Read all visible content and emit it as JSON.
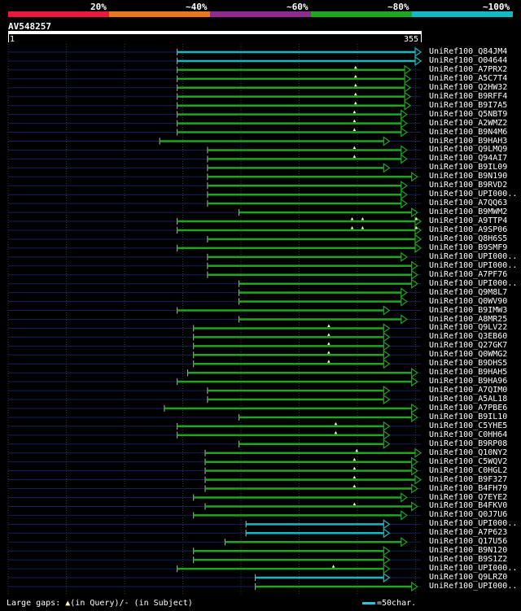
{
  "legend": {
    "labels": [
      "20%",
      "~40%",
      "~60%",
      "~80%",
      "~100%"
    ],
    "colors": [
      "#e8193a",
      "#e87820",
      "#8e2b8e",
      "#1fa51f",
      "#15b9c4"
    ]
  },
  "query": {
    "name": "AV548257",
    "start": "1",
    "end": "355",
    "length": 355
  },
  "footer": {
    "large_gaps": "Large gaps: ",
    "gap_query": "(in Query)/",
    "gap_subject": "- (in Subject)",
    "scale": "=50char."
  },
  "chart_data": {
    "type": "alignment",
    "x_range": [
      1,
      355
    ],
    "hits": [
      {
        "name": "UniRef100_Q84JM4",
        "start": 146,
        "end": 355,
        "identity": "~100%",
        "color": "#15b9c4",
        "gaps": []
      },
      {
        "name": "UniRef100_O04644",
        "start": 146,
        "end": 355,
        "identity": "~100%",
        "color": "#15b9c4",
        "gaps": []
      },
      {
        "name": "UniRef100_A7PRX2",
        "start": 146,
        "end": 346,
        "identity": "~80%",
        "color": "#1fa51f",
        "gaps": [
          299
        ]
      },
      {
        "name": "UniRef100_A5C7T4",
        "start": 146,
        "end": 346,
        "identity": "~80%",
        "color": "#1fa51f",
        "gaps": [
          299
        ]
      },
      {
        "name": "UniRef100_Q2HW32",
        "start": 146,
        "end": 346,
        "identity": "~80%",
        "color": "#1fa51f",
        "gaps": [
          299
        ]
      },
      {
        "name": "UniRef100_B9RFF4",
        "start": 146,
        "end": 346,
        "identity": "~80%",
        "color": "#1fa51f",
        "gaps": [
          299
        ]
      },
      {
        "name": "UniRef100_B9I7A5",
        "start": 146,
        "end": 346,
        "identity": "~80%",
        "color": "#1fa51f",
        "gaps": [
          299
        ]
      },
      {
        "name": "UniRef100_Q5NBT9",
        "start": 146,
        "end": 343,
        "identity": "~80%",
        "color": "#1fa51f",
        "gaps": [
          298
        ]
      },
      {
        "name": "UniRef100_A2WMZ2",
        "start": 146,
        "end": 343,
        "identity": "~80%",
        "color": "#1fa51f",
        "gaps": [
          298
        ]
      },
      {
        "name": "UniRef100_B9N4M6",
        "start": 146,
        "end": 343,
        "identity": "~80%",
        "color": "#1fa51f",
        "gaps": [
          298
        ]
      },
      {
        "name": "UniRef100_B9HAH3",
        "start": 131,
        "end": 328,
        "identity": "~80%",
        "color": "#1fa51f",
        "gaps": []
      },
      {
        "name": "UniRef100_Q9LMQ9",
        "start": 172,
        "end": 343,
        "identity": "~80%",
        "color": "#1fa51f",
        "gaps": [
          298
        ]
      },
      {
        "name": "UniRef100_Q94AI7",
        "start": 172,
        "end": 343,
        "identity": "~80%",
        "color": "#1fa51f",
        "gaps": [
          298
        ]
      },
      {
        "name": "UniRef100_B9IL09",
        "start": 172,
        "end": 328,
        "identity": "~80%",
        "color": "#1fa51f",
        "gaps": []
      },
      {
        "name": "UniRef100_B9N190",
        "start": 172,
        "end": 352,
        "identity": "~80%",
        "color": "#1fa51f",
        "gaps": []
      },
      {
        "name": "UniRef100_B9RVD2",
        "start": 172,
        "end": 343,
        "identity": "~80%",
        "color": "#1fa51f",
        "gaps": []
      },
      {
        "name": "UniRef100_UPI000..",
        "start": 172,
        "end": 343,
        "identity": "~80%",
        "color": "#1fa51f",
        "gaps": []
      },
      {
        "name": "UniRef100_A7QQ63",
        "start": 172,
        "end": 343,
        "identity": "~80%",
        "color": "#1fa51f",
        "gaps": []
      },
      {
        "name": "UniRef100_B9MWM2",
        "start": 199,
        "end": 352,
        "identity": "~80%",
        "color": "#1fa51f",
        "gaps": []
      },
      {
        "name": "UniRef100_A9TTP4",
        "start": 146,
        "end": 355,
        "identity": "~80%",
        "color": "#1fa51f",
        "gaps": [
          296,
          305,
          351
        ]
      },
      {
        "name": "UniRef100_A9SP06",
        "start": 146,
        "end": 355,
        "identity": "~80%",
        "color": "#1fa51f",
        "gaps": [
          296,
          305,
          351
        ]
      },
      {
        "name": "UniRef100_Q8H6S5",
        "start": 172,
        "end": 355,
        "identity": "~80%",
        "color": "#1fa51f",
        "gaps": []
      },
      {
        "name": "UniRef100_B9SMF9",
        "start": 146,
        "end": 355,
        "identity": "~80%",
        "color": "#1fa51f",
        "gaps": []
      },
      {
        "name": "UniRef100_UPI000..",
        "start": 172,
        "end": 343,
        "identity": "~80%",
        "color": "#1fa51f",
        "gaps": []
      },
      {
        "name": "UniRef100_UPI000..",
        "start": 172,
        "end": 352,
        "identity": "~80%",
        "color": "#1fa51f",
        "gaps": []
      },
      {
        "name": "UniRef100_A7PF76",
        "start": 172,
        "end": 352,
        "identity": "~80%",
        "color": "#1fa51f",
        "gaps": []
      },
      {
        "name": "UniRef100_UPI000..",
        "start": 199,
        "end": 352,
        "identity": "~80%",
        "color": "#1fa51f",
        "gaps": []
      },
      {
        "name": "UniRef100_Q9M8L7",
        "start": 199,
        "end": 343,
        "identity": "~80%",
        "color": "#1fa51f",
        "gaps": []
      },
      {
        "name": "UniRef100_Q0WV90",
        "start": 199,
        "end": 343,
        "identity": "~80%",
        "color": "#1fa51f",
        "gaps": []
      },
      {
        "name": "UniRef100_B9IMW3",
        "start": 146,
        "end": 328,
        "identity": "~80%",
        "color": "#1fa51f",
        "gaps": []
      },
      {
        "name": "UniRef100_A8MR25",
        "start": 199,
        "end": 343,
        "identity": "~80%",
        "color": "#1fa51f",
        "gaps": []
      },
      {
        "name": "UniRef100_Q9LV22",
        "start": 160,
        "end": 328,
        "identity": "~80%",
        "color": "#1fa51f",
        "gaps": [
          276
        ]
      },
      {
        "name": "UniRef100_Q3EB60",
        "start": 160,
        "end": 328,
        "identity": "~80%",
        "color": "#1fa51f",
        "gaps": [
          276
        ]
      },
      {
        "name": "UniRef100_Q27GK7",
        "start": 160,
        "end": 328,
        "identity": "~80%",
        "color": "#1fa51f",
        "gaps": [
          276
        ]
      },
      {
        "name": "UniRef100_Q0WMG2",
        "start": 160,
        "end": 328,
        "identity": "~80%",
        "color": "#1fa51f",
        "gaps": [
          276
        ]
      },
      {
        "name": "UniRef100_B9DHS5",
        "start": 160,
        "end": 328,
        "identity": "~80%",
        "color": "#1fa51f",
        "gaps": [
          276
        ]
      },
      {
        "name": "UniRef100_B9HAH5",
        "start": 155,
        "end": 352,
        "identity": "~80%",
        "color": "#1fa51f",
        "gaps": []
      },
      {
        "name": "UniRef100_B9HA96",
        "start": 146,
        "end": 352,
        "identity": "~80%",
        "color": "#1fa51f",
        "gaps": []
      },
      {
        "name": "UniRef100_A7QIM0",
        "start": 172,
        "end": 328,
        "identity": "~80%",
        "color": "#1fa51f",
        "gaps": []
      },
      {
        "name": "UniRef100_A5AL18",
        "start": 172,
        "end": 328,
        "identity": "~80%",
        "color": "#1fa51f",
        "gaps": []
      },
      {
        "name": "UniRef100_A7PBE6",
        "start": 135,
        "end": 352,
        "identity": "~80%",
        "color": "#1fa51f",
        "gaps": []
      },
      {
        "name": "UniRef100_B9IL10",
        "start": 199,
        "end": 352,
        "identity": "~80%",
        "color": "#1fa51f",
        "gaps": []
      },
      {
        "name": "UniRef100_C5YHE5",
        "start": 146,
        "end": 328,
        "identity": "~80%",
        "color": "#1fa51f",
        "gaps": [
          282
        ]
      },
      {
        "name": "UniRef100_C0HH64",
        "start": 146,
        "end": 328,
        "identity": "~80%",
        "color": "#1fa51f",
        "gaps": [
          282
        ]
      },
      {
        "name": "UniRef100_B9RP08",
        "start": 199,
        "end": 328,
        "identity": "~80%",
        "color": "#1fa51f",
        "gaps": []
      },
      {
        "name": "UniRef100_Q10NY2",
        "start": 170,
        "end": 355,
        "identity": "~80%",
        "color": "#1fa51f",
        "gaps": [
          300
        ]
      },
      {
        "name": "UniRef100_C5WQV2",
        "start": 170,
        "end": 352,
        "identity": "~80%",
        "color": "#1fa51f",
        "gaps": [
          298
        ]
      },
      {
        "name": "UniRef100_C0HGL2",
        "start": 170,
        "end": 352,
        "identity": "~80%",
        "color": "#1fa51f",
        "gaps": [
          298
        ]
      },
      {
        "name": "UniRef100_B9F327",
        "start": 170,
        "end": 355,
        "identity": "~80%",
        "color": "#1fa51f",
        "gaps": [
          298
        ]
      },
      {
        "name": "UniRef100_B4FH79",
        "start": 170,
        "end": 352,
        "identity": "~80%",
        "color": "#1fa51f",
        "gaps": [
          298
        ]
      },
      {
        "name": "UniRef100_Q7EYE2",
        "start": 160,
        "end": 343,
        "identity": "~80%",
        "color": "#1fa51f",
        "gaps": []
      },
      {
        "name": "UniRef100_B4FKV0",
        "start": 170,
        "end": 352,
        "identity": "~80%",
        "color": "#1fa51f",
        "gaps": [
          298
        ]
      },
      {
        "name": "UniRef100_Q0J7U6",
        "start": 160,
        "end": 343,
        "identity": "~80%",
        "color": "#1fa51f",
        "gaps": []
      },
      {
        "name": "UniRef100_UPI000..",
        "start": 205,
        "end": 328,
        "identity": "~100%",
        "color": "#15b9c4",
        "gaps": []
      },
      {
        "name": "UniRef100_A7P623",
        "start": 205,
        "end": 328,
        "identity": "~100%",
        "color": "#15b9c4",
        "gaps": []
      },
      {
        "name": "UniRef100_Q17U56",
        "start": 187,
        "end": 343,
        "identity": "~80%",
        "color": "#1fa51f",
        "gaps": []
      },
      {
        "name": "UniRef100_B9N120",
        "start": 160,
        "end": 328,
        "identity": "~80%",
        "color": "#1fa51f",
        "gaps": []
      },
      {
        "name": "UniRef100_B9S1Z2",
        "start": 160,
        "end": 328,
        "identity": "~80%",
        "color": "#1fa51f",
        "gaps": []
      },
      {
        "name": "UniRef100_UPI000..",
        "start": 146,
        "end": 328,
        "identity": "~80%",
        "color": "#1fa51f",
        "gaps": [
          280
        ]
      },
      {
        "name": "UniRef100_Q9LRZ0",
        "start": 213,
        "end": 328,
        "identity": "~100%",
        "color": "#15b9c4",
        "gaps": []
      },
      {
        "name": "UniRef100_UPI000..",
        "start": 213,
        "end": 352,
        "identity": "~80%",
        "color": "#1fa51f",
        "gaps": []
      }
    ]
  }
}
